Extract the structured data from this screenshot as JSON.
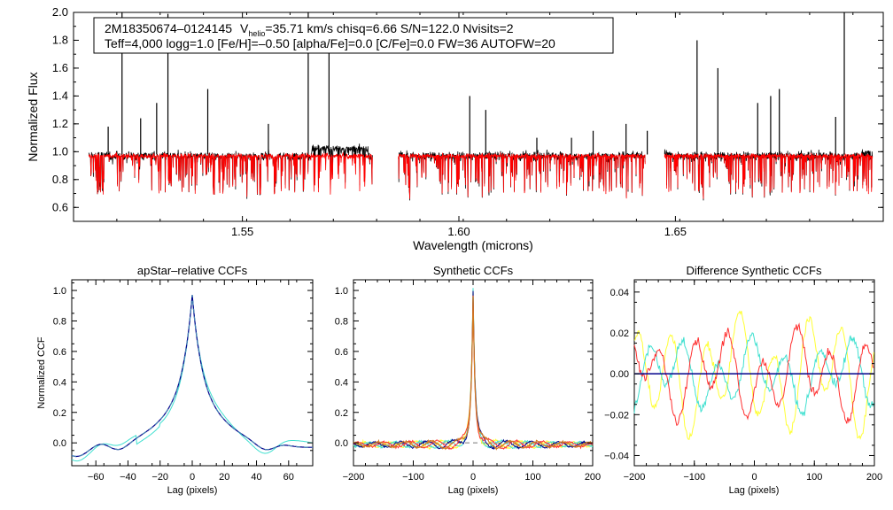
{
  "chart_data": [
    {
      "type": "line",
      "id": "spectrum",
      "info_box": {
        "line1": {
          "id": "2M18350674–0124145",
          "v": "V",
          "v_sub": "helio",
          "rest": "=35.71 km/s  chisq=6.66  S/N=122.0  Nvisits=2"
        },
        "line2": "Teff=4,000 logg=1.0 [Fe/H]=–0.50 [alpha/Fe]=0.0 [C/Fe]=0.0 FW=36 AUTOFW=20"
      },
      "xlabel": "Wavelength (microns)",
      "ylabel": "Normalized Flux",
      "xlim": [
        1.511,
        1.698
      ],
      "ylim": [
        0.5,
        2.0
      ],
      "xticks": [
        1.55,
        1.6,
        1.65
      ],
      "xtick_labels": [
        "1.55",
        "1.60",
        "1.65"
      ],
      "yticks": [
        0.6,
        0.8,
        1.0,
        1.2,
        1.4,
        1.6,
        1.8,
        2.0
      ],
      "ytick_labels": [
        "0.6",
        "0.8",
        "1.0",
        "1.2",
        "1.4",
        "1.6",
        "1.8",
        "2.0"
      ],
      "chips": [
        [
          1.5145,
          1.58
        ],
        [
          1.586,
          1.643
        ],
        [
          1.6475,
          1.6955
        ]
      ],
      "spike_wavelengths": [
        1.519,
        1.5222,
        1.5265,
        1.5302,
        1.5328,
        1.542,
        1.556,
        1.5652,
        1.57,
        1.6025,
        1.6062,
        1.618,
        1.626,
        1.631,
        1.6386,
        1.6435,
        1.655,
        1.6598,
        1.669,
        1.672,
        1.674,
        1.687,
        1.689
      ],
      "spike_values": [
        1.18,
        2.0,
        1.24,
        1.35,
        1.99,
        1.45,
        1.2,
        2.0,
        1.75,
        1.4,
        1.3,
        1.1,
        1.1,
        1.15,
        1.2,
        1.15,
        1.8,
        1.6,
        1.35,
        1.4,
        1.45,
        1.25,
        2.0
      ],
      "series": [
        {
          "name": "observed",
          "color": "#000000"
        },
        {
          "name": "model",
          "color": "#ff0000"
        }
      ]
    },
    {
      "type": "line",
      "id": "apstar_ccf",
      "title": "apStar–relative CCFs",
      "xlabel": "Lag (pixels)",
      "ylabel": "Normalized CCF",
      "xlim": [
        -75,
        75
      ],
      "ylim": [
        -0.15,
        1.07
      ],
      "xticks": [
        -60,
        -40,
        -20,
        0,
        20,
        40,
        60
      ],
      "xtick_labels": [
        "−60",
        "−40",
        "−20",
        "0",
        "20",
        "40",
        "60"
      ],
      "yticks": [
        0.0,
        0.2,
        0.4,
        0.6,
        0.8,
        1.0
      ],
      "ytick_labels": [
        "0.0",
        "0.2",
        "0.4",
        "0.6",
        "0.8",
        "1.0"
      ],
      "series": [
        {
          "name": "visit-1",
          "color": "#00008b"
        },
        {
          "name": "visit-2",
          "color": "#40e0d0"
        },
        {
          "name": "combined",
          "color": "#4682b4",
          "style": "dashed"
        }
      ]
    },
    {
      "type": "line",
      "id": "synthetic_ccf",
      "title": "Synthetic CCFs",
      "xlabel": "Lag (pixels)",
      "ylabel": "",
      "xlim": [
        -200,
        200
      ],
      "ylim": [
        -0.15,
        1.07
      ],
      "xticks": [
        -200,
        -100,
        0,
        100,
        200
      ],
      "xtick_labels": [
        "−200",
        "−100",
        "0",
        "100",
        "200"
      ],
      "yticks": [
        0.0,
        0.2,
        0.4,
        0.6,
        0.8,
        1.0
      ],
      "ytick_labels": [
        "0.0",
        "0.2",
        "0.4",
        "0.6",
        "0.8",
        "1.0"
      ],
      "series": [
        {
          "name": "visit-1",
          "color": "#00008b"
        },
        {
          "name": "visit-2",
          "color": "#40e0d0"
        },
        {
          "name": "visit-3",
          "color": "#ffff33"
        },
        {
          "name": "visit-4",
          "color": "#ff3030"
        },
        {
          "name": "mean",
          "color": "#d07820"
        }
      ]
    },
    {
      "type": "line",
      "id": "difference_ccf",
      "title": "Difference Synthetic CCFs",
      "xlabel": "Lag (pixels)",
      "ylabel": "",
      "xlim": [
        -200,
        200
      ],
      "ylim": [
        -0.045,
        0.046
      ],
      "xticks": [
        -200,
        -100,
        0,
        100,
        200
      ],
      "xtick_labels": [
        "−200",
        "−100",
        "0",
        "100",
        "200"
      ],
      "yticks": [
        -0.04,
        -0.02,
        0.0,
        0.02,
        0.04
      ],
      "ytick_labels": [
        "−0.04",
        "−0.02",
        "0.00",
        "0.02",
        "0.04"
      ],
      "series": [
        {
          "name": "visit-1",
          "color": "#00008b"
        },
        {
          "name": "visit-2",
          "color": "#40e0d0"
        },
        {
          "name": "visit-3",
          "color": "#ffff33"
        },
        {
          "name": "visit-4",
          "color": "#ff3030"
        }
      ]
    }
  ]
}
